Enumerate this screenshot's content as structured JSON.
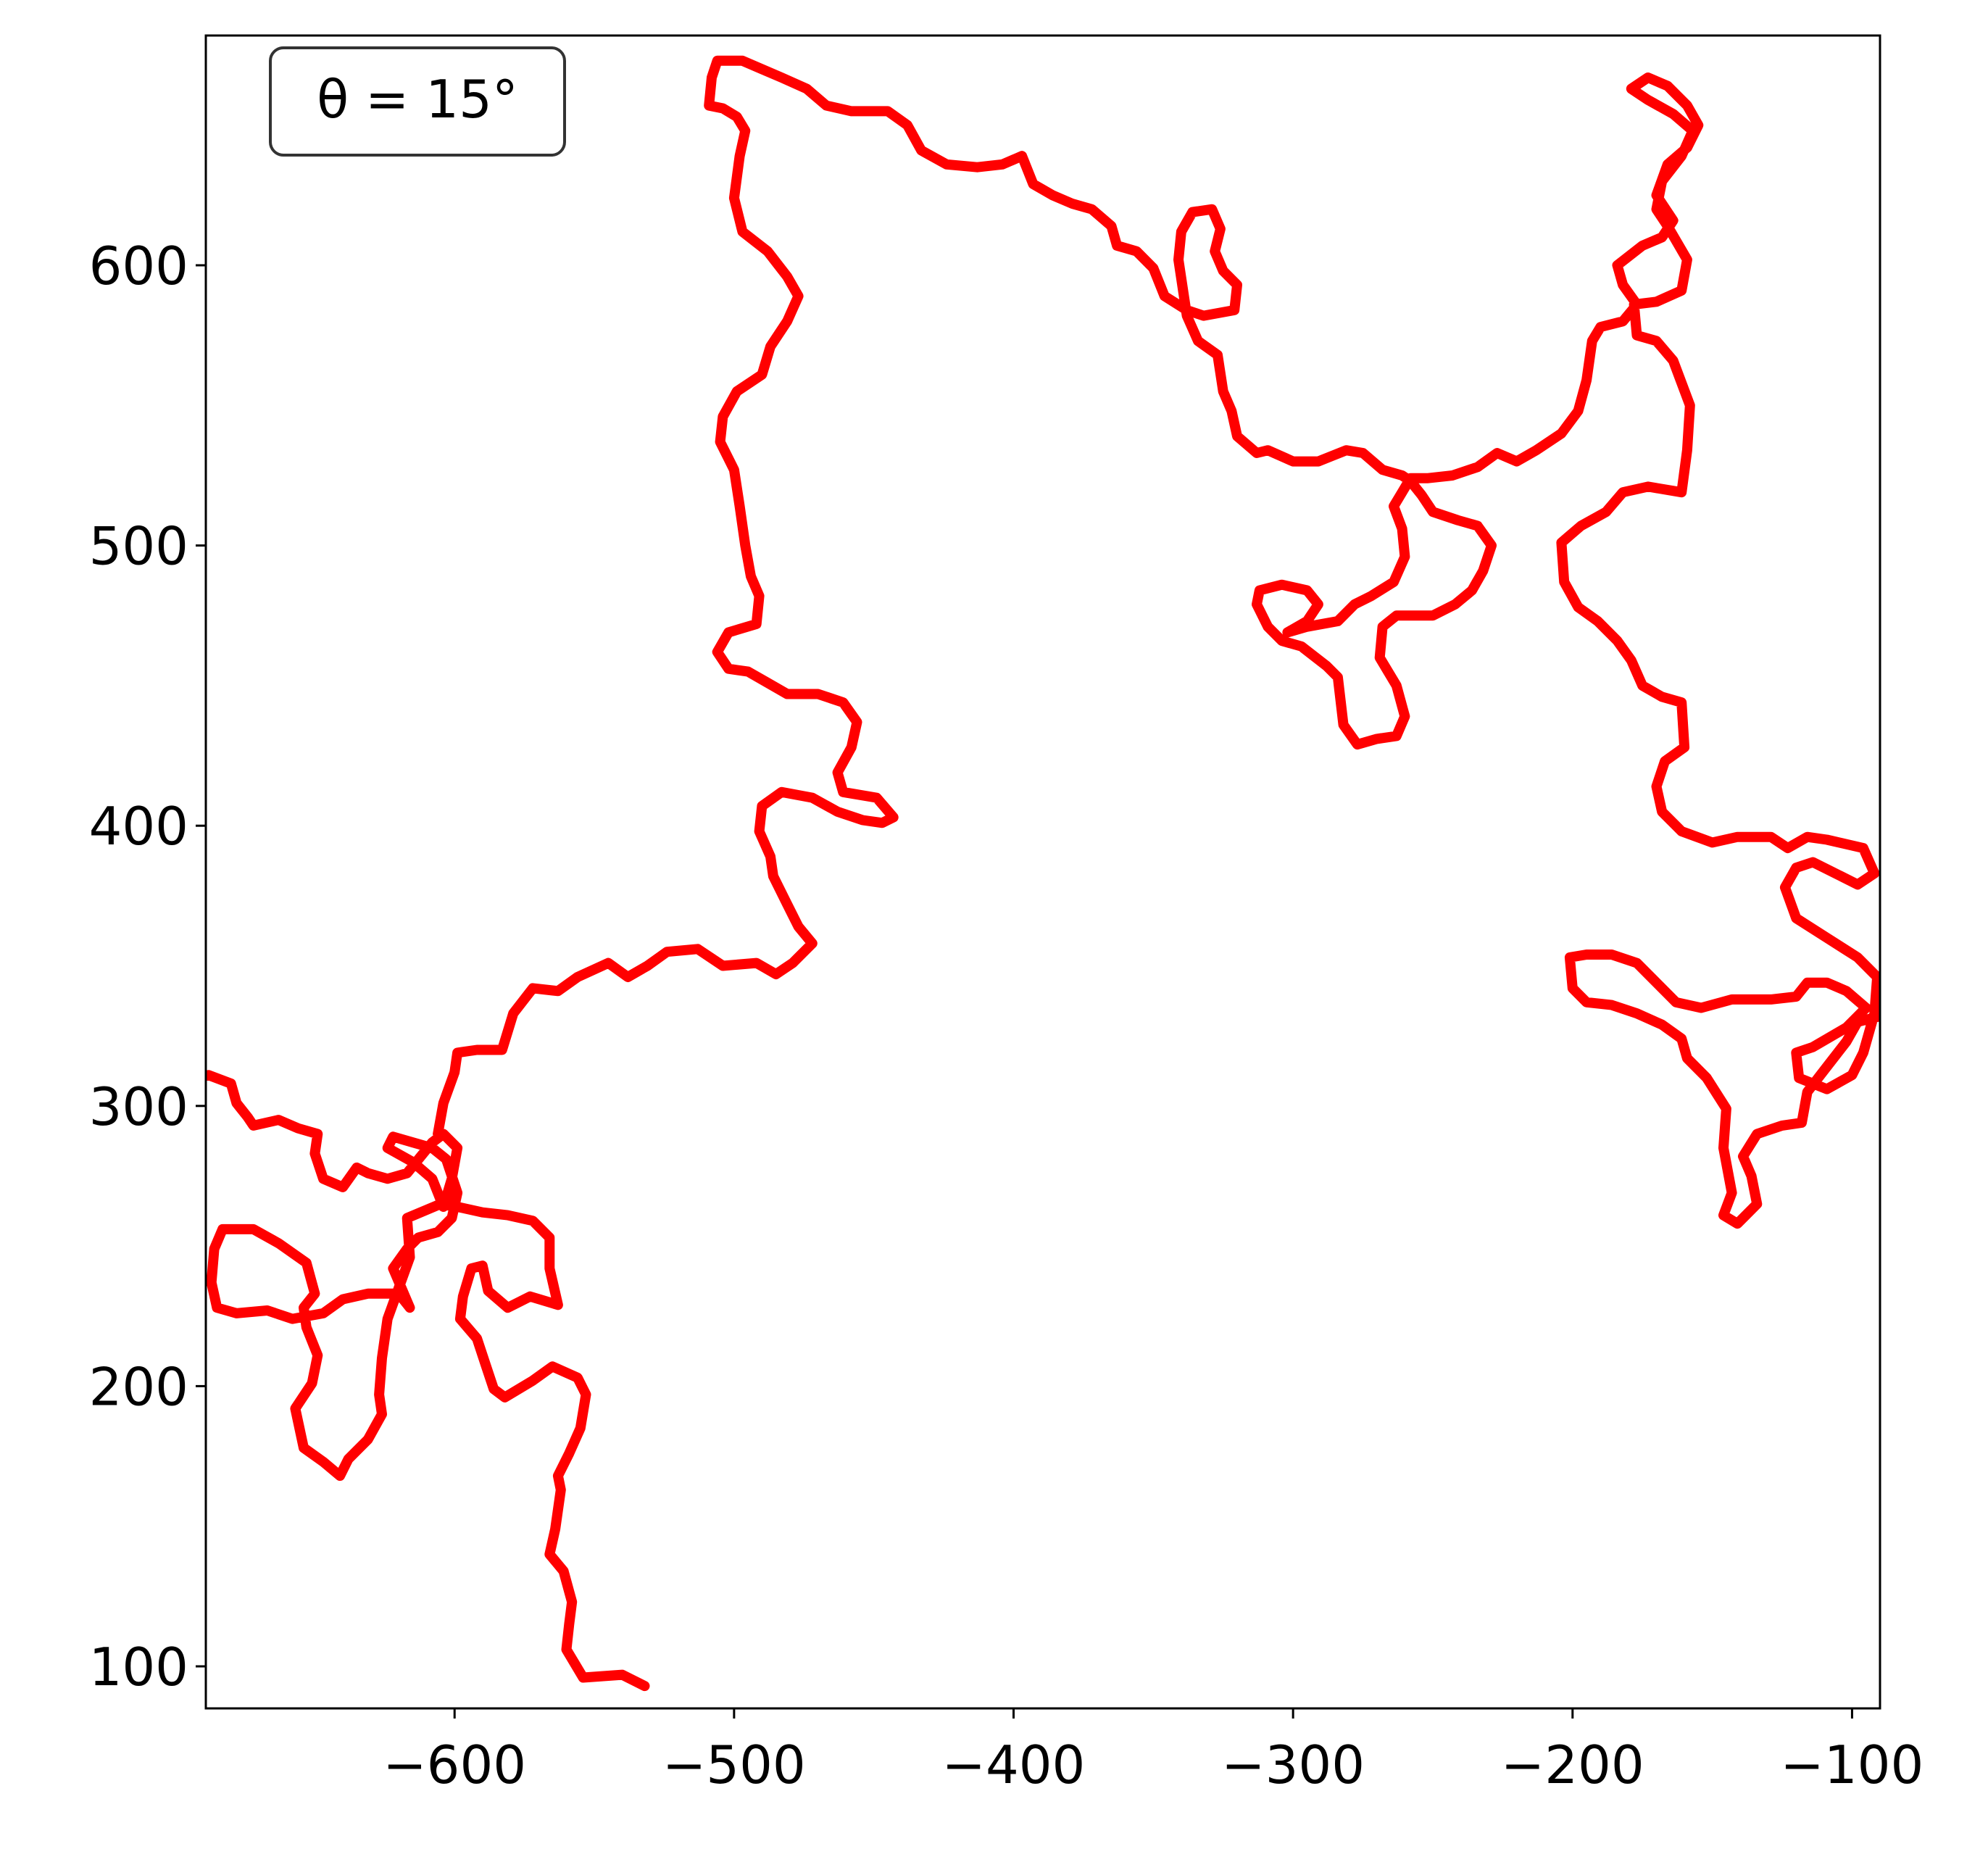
{
  "chart_data": {
    "type": "line",
    "annotation": "θ = 15°",
    "x": [
      -532,
      -540,
      -554,
      -560,
      -559,
      -558,
      -561,
      -566,
      -564,
      -562,
      -563,
      -559,
      -555,
      -553,
      -556,
      -565,
      -572,
      -582,
      -586,
      -589,
      -592,
      -598,
      -597,
      -594,
      -590,
      -588,
      -581,
      -573,
      -563,
      -566,
      -566,
      -572,
      -581,
      -590,
      -599,
      -605,
      -617,
      -616,
      -620,
      -624,
      -626,
      -627,
      -626,
      -631,
      -638,
      -641,
      -647,
      -654,
      -657,
      -651,
      -649,
      -653,
      -654,
      -650,
      -653,
      -663,
      -672,
      -683,
      -686,
      -687,
      -685,
      -678,
      -667,
      -658,
      -647,
      -640,
      -631,
      -620,
      -616,
      -622,
      -617,
      -613,
      -606,
      -601,
      -599,
      -603,
      -608,
      -615,
      -622,
      -624,
      -615,
      -608,
      -604,
      -601,
      -599,
      -604,
      -608,
      -617,
      -624,
      -631,
      -635,
      -640,
      -647,
      -650,
      -649,
      -656,
      -663,
      -672,
      -674,
      -678,
      -680,
      -688,
      -699,
      null,
      -606,
      -604,
      -600,
      -599,
      -592,
      -583,
      -579,
      -572,
      -563,
      -556,
      -545,
      -538,
      -531,
      -524,
      -513,
      -504,
      -492,
      -485,
      -479,
      -472,
      -477,
      -481,
      -486,
      -487,
      -491,
      -490,
      -483,
      -472,
      -463,
      -454,
      -447,
      -443,
      -449,
      -461,
      -463,
      -458,
      -456,
      -461,
      -470,
      -481,
      -488,
      -495,
      -502,
      -506,
      -502,
      -492,
      -491,
      -494,
      -496,
      -498,
      -500,
      -505,
      -504,
      -499,
      -490,
      -487,
      -481,
      -477,
      -481,
      -488,
      -497,
      -500,
      -498,
      -496,
      -499,
      -504,
      -509,
      -508,
      -506,
      -497,
      -490,
      -483,
      -474,
      -467,
      -458,
      -445,
      -438,
      -433,
      -424,
      -413,
      -404,
      -397,
      -393,
      -386,
      -379,
      -372,
      -365,
      -363,
      -356,
      -350,
      -346,
      -338,
      -332,
      -321,
      -320,
      -325,
      -328,
      -326,
      -329,
      -336,
      -340,
      -341,
      -338,
      -334,
      -327,
      -325,
      -322,
      -320,
      -313,
      -309,
      -300,
      -291,
      -281,
      -275,
      -268,
      -261,
      -258,
      -254,
      -250,
      -241,
      -234,
      -229,
      -232,
      -236,
      -242,
      -250,
      -263,
      -268,
      -269,
      -263,
      -260,
      -263,
      -270,
      -277,
      -282,
      -284,
      -288,
      -297,
      -304,
      -309,
      -313,
      -312,
      -304,
      -295,
      -291,
      -295,
      -302,
      -295,
      -284,
      -278,
      -272,
      -264,
      -260,
      -261,
      -264,
      -261,
      -258,
      -252,
      -243,
      -234,
      -227,
      -220,
      -213,
      -204,
      -198,
      -195,
      -193,
      -190,
      -182,
      -177,
      -182,
      -184,
      -175,
      -168,
      -164,
      -170,
      -166,
      -159,
      -155,
      -159,
      -166,
      -173,
      -179,
      -173,
      -164,
      -157,
      -161,
      -168,
      -170,
      -166,
      -159,
      -161,
      -170,
      -178,
      -177,
      -170,
      -164,
      -158,
      -159,
      -161,
      -173,
      -182,
      -188,
      -197,
      -204,
      -203,
      -198,
      -191,
      -184,
      -179,
      -175,
      -168,
      -161,
      -160,
      -167,
      -170,
      -168,
      -161,
      -150,
      -141,
      -129,
      -123,
      -116,
      -109,
      -96,
      -92,
      -98,
      -104,
      -114,
      -120,
      -124,
      -120,
      -109,
      -98,
      -91,
      -92,
      -96,
      -100,
      -109,
      -119,
      -120,
      -114,
      -102,
      -95,
      -102,
      -109,
      -116,
      -120,
      -129,
      -143,
      -154,
      -163,
      -170,
      -177,
      -186,
      -195,
      -201,
      -200,
      -195,
      -186,
      -177,
      -168,
      -161,
      -159,
      -152,
      -145,
      -146,
      -143,
      -146,
      -141,
      -134,
      -136,
      -139,
      -134,
      -125,
      -118,
      -116,
      -109,
      -102,
      -98,
      -86
    ],
    "series": [
      {
        "color": "#ff0000",
        "values": [
          93,
          97,
          96,
          106,
          115,
          123,
          134,
          140,
          149,
          163,
          168,
          176,
          185,
          197,
          203,
          207,
          202,
          196,
          199,
          208,
          217,
          224,
          232,
          242,
          243,
          234,
          228,
          232,
          229,
          242,
          253,
          259,
          261,
          262,
          264,
          265,
          260,
          246,
          235,
          224,
          210,
          197,
          190,
          181,
          174,
          168,
          173,
          178,
          192,
          201,
          211,
          221,
          228,
          233,
          244,
          251,
          256,
          256,
          249,
          237,
          228,
          226,
          227,
          224,
          226,
          231,
          233,
          233,
          228,
          242,
          249,
          253,
          255,
          260,
          269,
          281,
          285,
          287,
          289,
          285,
          280,
          274,
          264,
          274,
          285,
          290,
          287,
          276,
          274,
          276,
          278,
          271,
          274,
          283,
          290,
          292,
          295,
          293,
          296,
          301,
          308,
          311,
          309,
          null,
          290,
          301,
          312,
          319,
          320,
          320,
          333,
          342,
          341,
          346,
          351,
          346,
          350,
          355,
          356,
          350,
          351,
          347,
          351,
          358,
          364,
          372,
          382,
          389,
          398,
          407,
          412,
          410,
          405,
          402,
          401,
          403,
          410,
          412,
          419,
          428,
          437,
          444,
          447,
          447,
          451,
          455,
          456,
          462,
          469,
          472,
          482,
          489,
          500,
          514,
          527,
          537,
          546,
          555,
          561,
          571,
          580,
          589,
          596,
          605,
          612,
          624,
          639,
          648,
          653,
          656,
          657,
          667,
          673,
          673,
          670,
          667,
          663,
          657,
          655,
          655,
          650,
          641,
          636,
          635,
          636,
          639,
          629,
          625,
          622,
          620,
          614,
          607,
          605,
          599,
          589,
          584,
          582,
          584,
          593,
          598,
          605,
          613,
          620,
          619,
          612,
          602,
          582,
          573,
          568,
          555,
          548,
          539,
          533,
          534,
          530,
          530,
          534,
          533,
          527,
          525,
          523,
          518,
          512,
          509,
          507,
          500,
          491,
          484,
          479,
          475,
          475,
          471,
          460,
          450,
          439,
          432,
          431,
          429,
          436,
          453,
          457,
          464,
          466,
          471,
          479,
          484,
          486,
          484,
          479,
          473,
          469,
          471,
          473,
          479,
          482,
          487,
          496,
          506,
          514,
          519,
          524,
          524,
          525,
          528,
          533,
          530,
          534,
          540,
          548,
          559,
          573,
          578,
          580,
          586,
          593,
          600,
          607,
          610,
          616,
          625,
          636,
          642,
          650,
          657,
          664,
          667,
          663,
          659,
          654,
          648,
          639,
          630,
          620,
          614,
          602,
          591,
          587,
          586,
          575,
          573,
          566,
          550,
          534,
          519,
          521,
          519,
          512,
          507,
          501,
          487,
          478,
          473,
          466,
          459,
          450,
          446,
          444,
          428,
          423,
          414,
          405,
          398,
          394,
          396,
          396,
          392,
          396,
          395,
          392,
          383,
          379,
          382,
          387,
          385,
          378,
          367,
          360,
          353,
          346,
          333,
          319,
          311,
          306,
          310,
          319,
          321,
          328,
          335,
          341,
          344,
          344,
          339,
          338,
          338,
          335,
          337,
          344,
          351,
          354,
          354,
          353,
          342,
          337,
          336,
          333,
          329,
          324,
          317,
          310,
          299,
          285,
          269,
          261,
          258,
          265,
          275,
          282,
          290,
          293,
          294,
          305,
          314,
          323,
          330,
          333
        ]
      }
    ],
    "xlim": [
      -689,
      -90
    ],
    "ylim": [
      85,
      682
    ],
    "xticks": [
      {
        "value": -600,
        "label": "−600"
      },
      {
        "value": -500,
        "label": "−500"
      },
      {
        "value": -400,
        "label": "−400"
      },
      {
        "value": -300,
        "label": "−300"
      },
      {
        "value": -200,
        "label": "−200"
      },
      {
        "value": -100,
        "label": "−100"
      }
    ],
    "yticks": [
      100,
      200,
      300,
      400,
      500,
      600
    ],
    "grid": false
  }
}
